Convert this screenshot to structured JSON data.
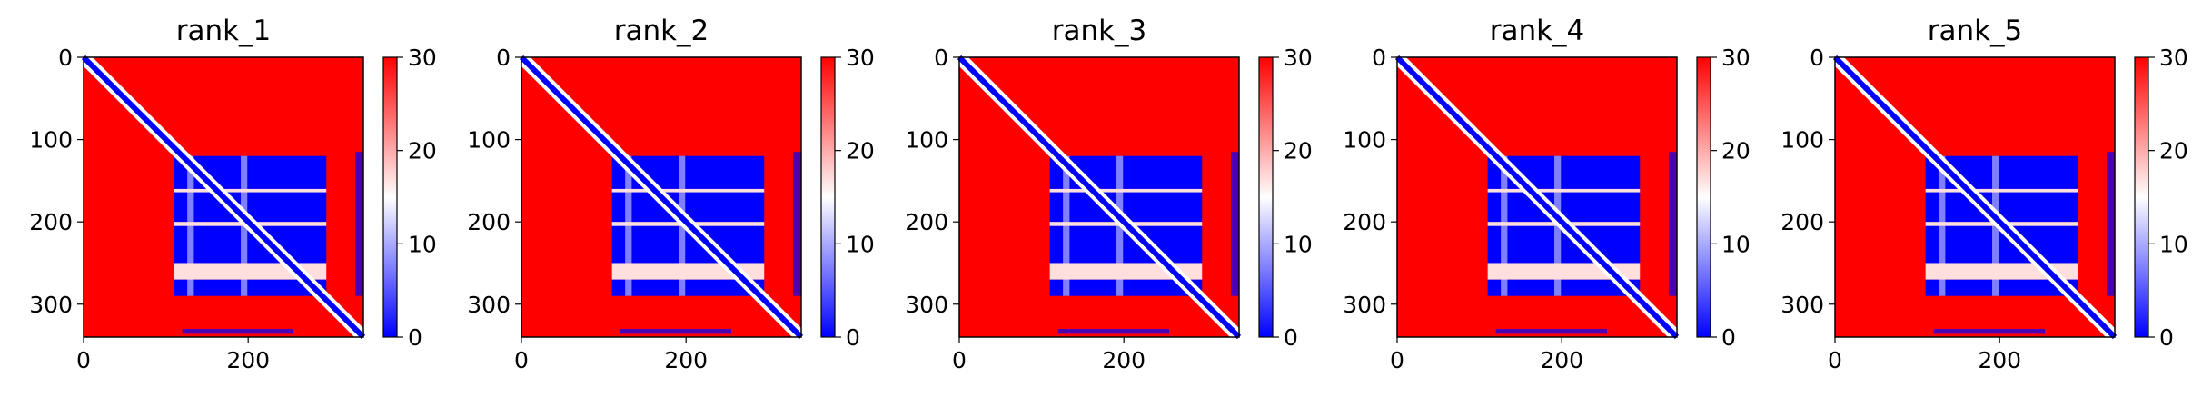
{
  "chart_data": [
    {
      "type": "heatmap",
      "title": "rank_1",
      "x_ticks": [
        "0",
        "200"
      ],
      "y_ticks": [
        "0",
        "100",
        "200",
        "300"
      ],
      "colorbar": {
        "ticks": [
          "0",
          "10",
          "20",
          "30"
        ],
        "range": [
          0,
          30
        ],
        "colormap": "bwr"
      },
      "extent": [
        0,
        340
      ],
      "stripe_blocks": [
        [
          120,
          160
        ],
        [
          160,
          200
        ],
        [
          200,
          250
        ],
        [
          270,
          290
        ]
      ]
    },
    {
      "type": "heatmap",
      "title": "rank_2",
      "x_ticks": [
        "0",
        "200"
      ],
      "y_ticks": [
        "0",
        "100",
        "200",
        "300"
      ],
      "colorbar": {
        "ticks": [
          "0",
          "10",
          "20",
          "30"
        ],
        "range": [
          0,
          30
        ],
        "colormap": "bwr"
      },
      "extent": [
        0,
        340
      ],
      "stripe_blocks": [
        [
          120,
          160
        ],
        [
          160,
          200
        ],
        [
          200,
          250
        ],
        [
          270,
          290
        ]
      ]
    },
    {
      "type": "heatmap",
      "title": "rank_3",
      "x_ticks": [
        "0",
        "200"
      ],
      "y_ticks": [
        "0",
        "100",
        "200",
        "300"
      ],
      "colorbar": {
        "ticks": [
          "0",
          "10",
          "20",
          "30"
        ],
        "range": [
          0,
          30
        ],
        "colormap": "bwr"
      },
      "extent": [
        0,
        340
      ],
      "stripe_blocks": [
        [
          120,
          160
        ],
        [
          160,
          200
        ],
        [
          200,
          250
        ],
        [
          270,
          290
        ]
      ]
    },
    {
      "type": "heatmap",
      "title": "rank_4",
      "x_ticks": [
        "0",
        "200"
      ],
      "y_ticks": [
        "0",
        "100",
        "200",
        "300"
      ],
      "colorbar": {
        "ticks": [
          "0",
          "10",
          "20",
          "30"
        ],
        "range": [
          0,
          30
        ],
        "colormap": "bwr"
      },
      "extent": [
        0,
        340
      ],
      "stripe_blocks": [
        [
          120,
          160
        ],
        [
          160,
          200
        ],
        [
          200,
          250
        ],
        [
          270,
          290
        ]
      ]
    },
    {
      "type": "heatmap",
      "title": "rank_5",
      "x_ticks": [
        "0",
        "200"
      ],
      "y_ticks": [
        "0",
        "100",
        "200",
        "300"
      ],
      "colorbar": {
        "ticks": [
          "0",
          "10",
          "20",
          "30"
        ],
        "range": [
          0,
          30
        ],
        "colormap": "bwr"
      },
      "extent": [
        0,
        340
      ],
      "stripe_blocks": [
        [
          120,
          160
        ],
        [
          160,
          200
        ],
        [
          200,
          250
        ],
        [
          270,
          290
        ]
      ]
    }
  ],
  "colors": {
    "low": "#0000ff",
    "mid": "#ffffff",
    "high": "#ff0000"
  }
}
